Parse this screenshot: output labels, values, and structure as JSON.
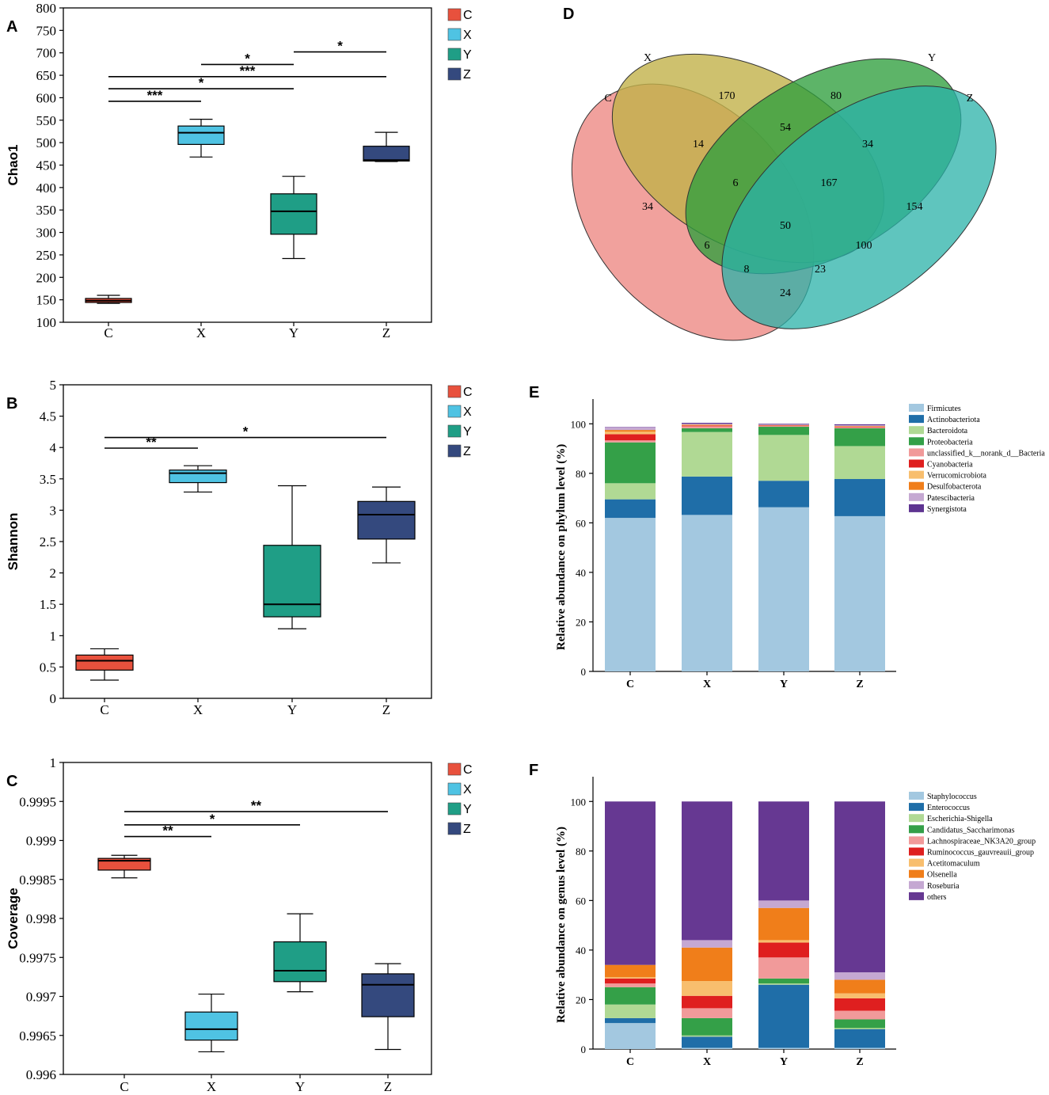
{
  "chart_data": [
    {
      "panel": "A",
      "type": "box",
      "ylabel": "Chao1",
      "ylim": [
        100,
        800
      ],
      "yticks": [
        "100",
        "150",
        "200",
        "250",
        "300",
        "350",
        "400",
        "450",
        "500",
        "550",
        "600",
        "650",
        "700",
        "750",
        "800"
      ],
      "categories": [
        "C",
        "X",
        "Y",
        "Z"
      ],
      "colors": [
        "#e8513d",
        "#4fc3e3",
        "#1f9e86",
        "#34497e"
      ],
      "legend": [
        "C",
        "X",
        "Y",
        "Z"
      ],
      "boxes": [
        {
          "min": 142,
          "q1": 144,
          "median": 148,
          "q3": 153,
          "max": 160
        },
        {
          "min": 468,
          "q1": 496,
          "median": 522,
          "q3": 537,
          "max": 552
        },
        {
          "min": 242,
          "q1": 296,
          "median": 347,
          "q3": 386,
          "max": 425
        },
        {
          "min": 458,
          "q1": 459,
          "median": 461,
          "q3": 492,
          "max": 523
        }
      ],
      "significance": [
        {
          "from": 0,
          "to": 1,
          "y": 592,
          "label": "***"
        },
        {
          "from": 0,
          "to": 2,
          "y": 620,
          "label": "*"
        },
        {
          "from": 0,
          "to": 3,
          "y": 647,
          "label": "***"
        },
        {
          "from": 1,
          "to": 2,
          "y": 674,
          "label": "*"
        },
        {
          "from": 2,
          "to": 3,
          "y": 702,
          "label": "*"
        }
      ]
    },
    {
      "panel": "B",
      "type": "box",
      "ylabel": "Shannon",
      "ylim": [
        0,
        5
      ],
      "yticks": [
        "0",
        "0.5",
        "1",
        "1.5",
        "2",
        "2.5",
        "3",
        "3.5",
        "4",
        "4.5",
        "5"
      ],
      "categories": [
        "C",
        "X",
        "Y",
        "Z"
      ],
      "colors": [
        "#e8513d",
        "#4fc3e3",
        "#1f9e86",
        "#34497e"
      ],
      "legend": [
        "C",
        "X",
        "Y",
        "Z"
      ],
      "boxes": [
        {
          "min": 0.29,
          "q1": 0.45,
          "median": 0.6,
          "q3": 0.69,
          "max": 0.79
        },
        {
          "min": 3.29,
          "q1": 3.44,
          "median": 3.59,
          "q3": 3.64,
          "max": 3.71
        },
        {
          "min": 1.11,
          "q1": 1.3,
          "median": 1.5,
          "q3": 2.44,
          "max": 3.39
        },
        {
          "min": 2.16,
          "q1": 2.54,
          "median": 2.93,
          "q3": 3.14,
          "max": 3.37
        }
      ],
      "significance": [
        {
          "from": 0,
          "to": 1,
          "y": 3.99,
          "label": "**"
        },
        {
          "from": 0,
          "to": 3,
          "y": 4.16,
          "label": "*"
        }
      ]
    },
    {
      "panel": "C",
      "type": "box",
      "ylabel": "Coverage",
      "ylim": [
        0.996,
        1
      ],
      "yticks": [
        "0.996",
        "0.9965",
        "0.997",
        "0.9975",
        "0.998",
        "0.9985",
        "0.999",
        "0.9995",
        "1"
      ],
      "categories": [
        "C",
        "X",
        "Y",
        "Z"
      ],
      "colors": [
        "#e8513d",
        "#4fc3e3",
        "#1f9e86",
        "#34497e"
      ],
      "legend": [
        "C",
        "X",
        "Y",
        "Z"
      ],
      "boxes": [
        {
          "min": 0.99852,
          "q1": 0.99862,
          "median": 0.99874,
          "q3": 0.99877,
          "max": 0.99881
        },
        {
          "min": 0.99629,
          "q1": 0.99644,
          "median": 0.99658,
          "q3": 0.9968,
          "max": 0.99703
        },
        {
          "min": 0.99706,
          "q1": 0.99719,
          "median": 0.99733,
          "q3": 0.9977,
          "max": 0.99806
        },
        {
          "min": 0.99632,
          "q1": 0.99674,
          "median": 0.99715,
          "q3": 0.99729,
          "max": 0.99742
        }
      ],
      "significance": [
        {
          "from": 0,
          "to": 1,
          "y": 0.99905,
          "label": "**"
        },
        {
          "from": 0,
          "to": 2,
          "y": 0.9992,
          "label": "*"
        },
        {
          "from": 0,
          "to": 3,
          "y": 0.99937,
          "label": "**"
        }
      ]
    },
    {
      "panel": "D",
      "type": "venn",
      "sets": [
        "C",
        "X",
        "Y",
        "Z"
      ],
      "colors": [
        "#ee8a84",
        "#c2b24a",
        "#2f9f3e",
        "#2ab2a8"
      ],
      "regions": {
        "C": 34,
        "X": 170,
        "Y": 80,
        "Z": 154,
        "CX": 14,
        "XY": 54,
        "YZ": 34,
        "CXY": 6,
        "XYZ": 167,
        "CXYZ": 50,
        "CY": 6,
        "XZ": 100,
        "CXZ": 8,
        "CYZ": 23,
        "CZ": 24
      }
    },
    {
      "panel": "E",
      "type": "stacked-bar",
      "ylabel": "Relative abundance on phylum level (%)",
      "ylim": [
        0,
        100
      ],
      "yticks": [
        "0",
        "20",
        "40",
        "60",
        "80",
        "100"
      ],
      "categories": [
        "C",
        "X",
        "Y",
        "Z"
      ],
      "series": [
        {
          "name": "Firmicutes",
          "color": "#a3c8e0",
          "values": [
            62,
            63.2,
            66.3,
            62.7
          ]
        },
        {
          "name": "Actinobacteriota",
          "color": "#1f6ea8",
          "values": [
            7.5,
            15.5,
            10.7,
            15
          ]
        },
        {
          "name": "Bacteroidota",
          "color": "#b0d994",
          "values": [
            6.5,
            18,
            18.5,
            13.3
          ]
        },
        {
          "name": "Proteobacteria",
          "color": "#34a048",
          "values": [
            16.5,
            1.5,
            3.3,
            7.2
          ]
        },
        {
          "name": "unclassified_k__norank_d__Bacteria",
          "color": "#f19a9a",
          "values": [
            0.8,
            0.8,
            0.3,
            0.4
          ]
        },
        {
          "name": "Cyanobacteria",
          "color": "#df1f1f",
          "values": [
            2.5,
            0.3,
            0.2,
            0.2
          ]
        },
        {
          "name": "Verrucomicrobiota",
          "color": "#f8be6e",
          "values": [
            1,
            0.2,
            0.1,
            0.1
          ]
        },
        {
          "name": "Desulfobacterota",
          "color": "#f07e1a",
          "values": [
            0.7,
            0.2,
            0.1,
            0.2
          ]
        },
        {
          "name": "Patescibacteria",
          "color": "#c5a8d2",
          "values": [
            1.2,
            0.3,
            0.2,
            0.3
          ]
        },
        {
          "name": "Synergistota",
          "color": "#5e3491",
          "values": [
            0.1,
            0.4,
            0.3,
            0.4
          ]
        }
      ]
    },
    {
      "panel": "F",
      "type": "stacked-bar",
      "ylabel": "Relative abundance on genus level (%)",
      "ylim": [
        0,
        100
      ],
      "yticks": [
        "0",
        "20",
        "40",
        "60",
        "80",
        "100"
      ],
      "categories": [
        "C",
        "X",
        "Y",
        "Z"
      ],
      "series": [
        {
          "name": "Staphylococcus",
          "color": "#a3c8e0",
          "values": [
            10.5,
            0.5,
            0.5,
            0.5
          ]
        },
        {
          "name": "Enterococcus",
          "color": "#1f6ea8",
          "values": [
            2,
            4.5,
            25.5,
            7.5
          ]
        },
        {
          "name": "Escherichia-Shigella",
          "color": "#b0d994",
          "values": [
            5.5,
            0.5,
            0.5,
            0.5
          ]
        },
        {
          "name": "Candidatus_Saccharimonas",
          "color": "#34a048",
          "values": [
            7,
            7,
            2,
            3.5
          ]
        },
        {
          "name": "Lachnospiraceae_NK3A20_group",
          "color": "#f19a9a",
          "values": [
            1.5,
            4,
            8.5,
            3.5
          ]
        },
        {
          "name": "Ruminococcus_gauvreauii_group",
          "color": "#df1f1f",
          "values": [
            2,
            5,
            6,
            5
          ]
        },
        {
          "name": "Acetitomaculum",
          "color": "#f8be6e",
          "values": [
            0.5,
            6,
            1,
            2
          ]
        },
        {
          "name": "Olsenella",
          "color": "#f07e1a",
          "values": [
            5,
            13.5,
            13,
            5.5
          ]
        },
        {
          "name": "Roseburia",
          "color": "#c5a8d2",
          "values": [
            0,
            3,
            3,
            3
          ]
        },
        {
          "name": "others",
          "color": "#663892",
          "values": [
            66,
            56,
            40,
            69
          ]
        }
      ]
    }
  ]
}
